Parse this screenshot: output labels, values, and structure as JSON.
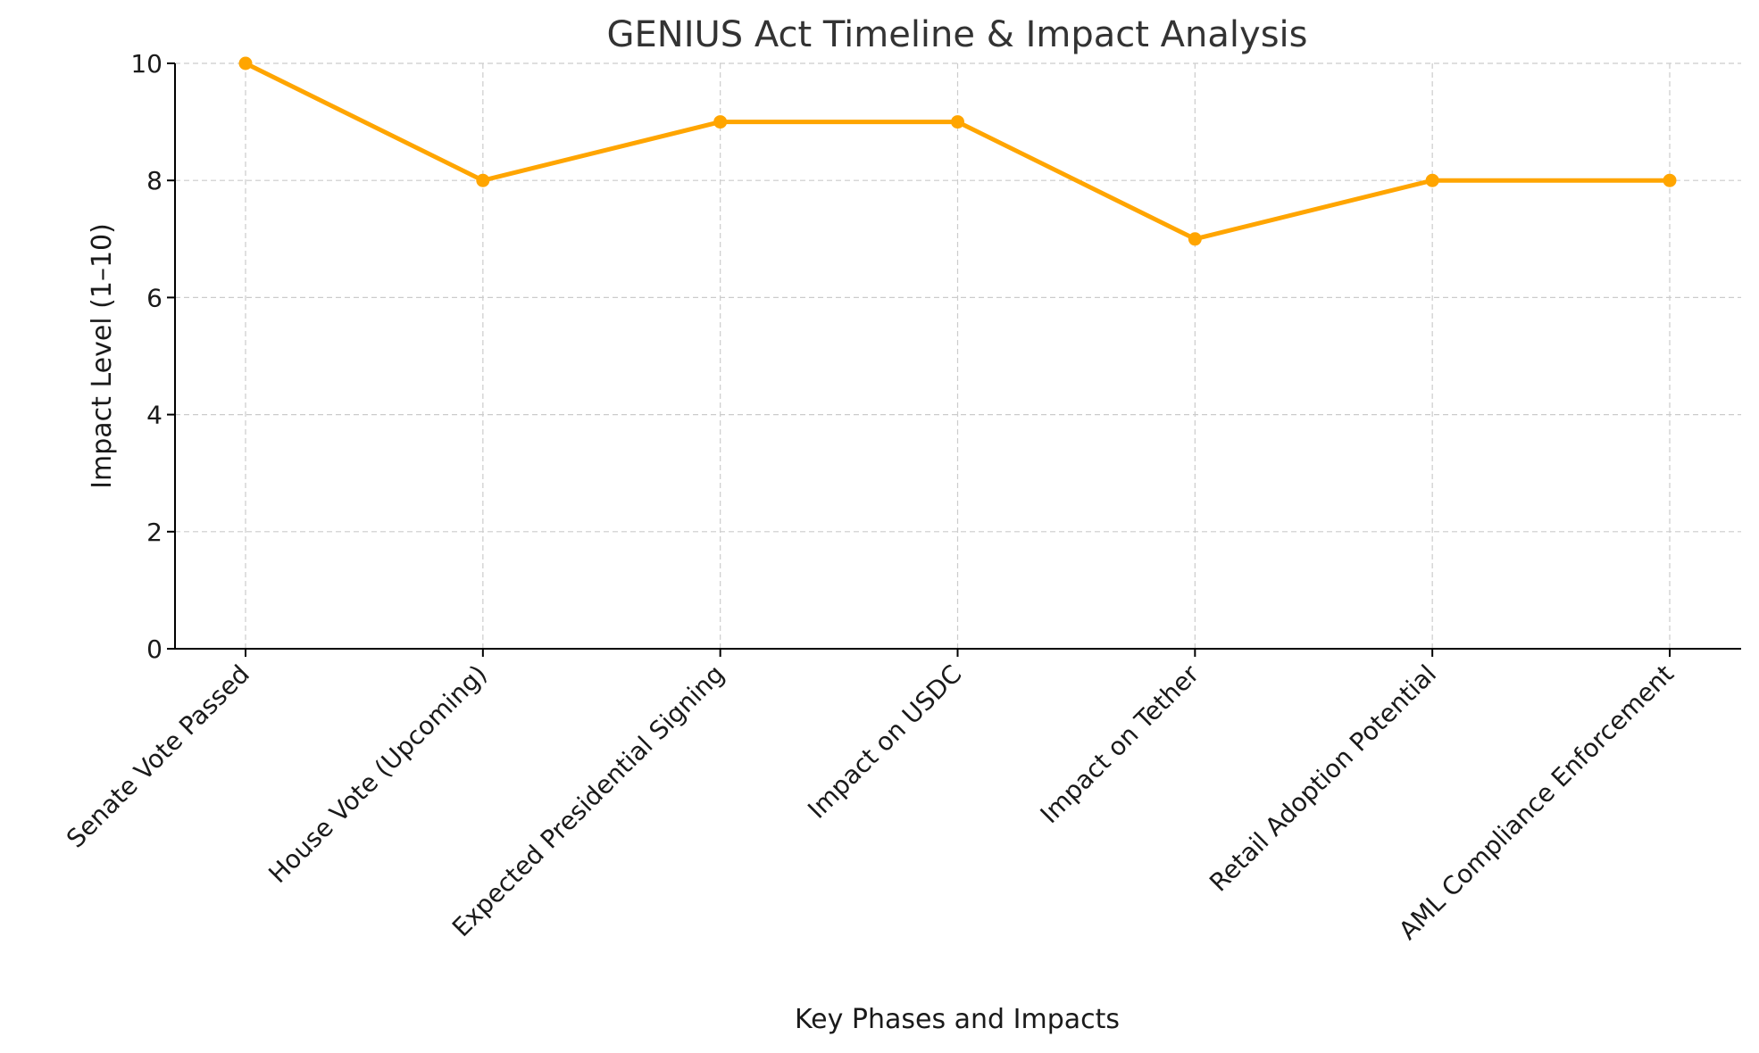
{
  "chart_data": {
    "type": "line",
    "title": "GENIUS Act Timeline & Impact Analysis",
    "xlabel": "Key Phases and Impacts",
    "ylabel": "Impact Level (1–10)",
    "categories": [
      "Senate Vote Passed",
      "House Vote (Upcoming)",
      "Expected Presidential Signing",
      "Impact on USDC",
      "Impact on Tether",
      "Retail Adoption Potential",
      "AML Compliance Enforcement"
    ],
    "values": [
      10,
      8,
      9,
      9,
      7,
      8,
      8
    ],
    "ylim": [
      0,
      10
    ],
    "yticks": [
      0,
      2,
      4,
      6,
      8,
      10
    ],
    "grid": true,
    "color": "#FFA500",
    "marker": "circle"
  }
}
